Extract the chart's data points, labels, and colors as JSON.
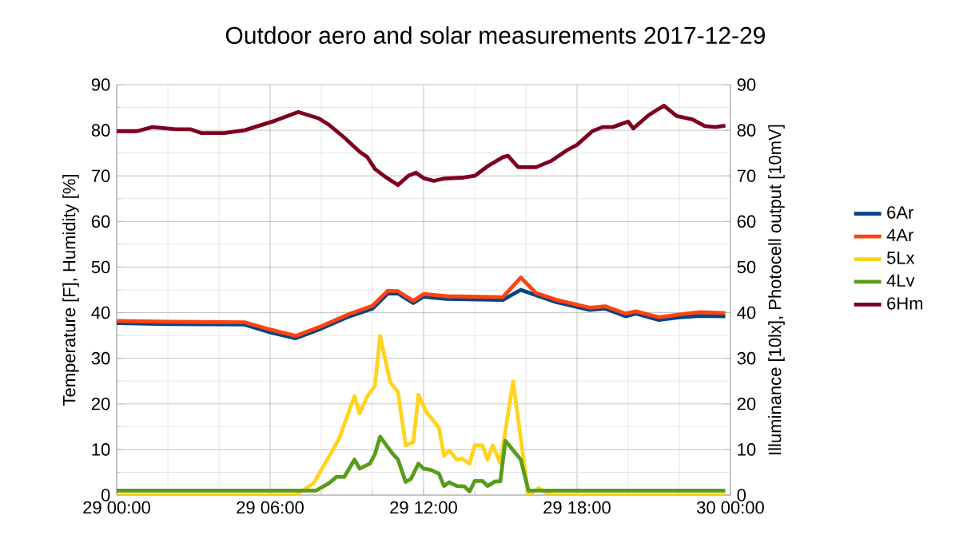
{
  "chart_data": {
    "type": "line",
    "title": "Outdoor aero and solar measurements 2017-12-29",
    "ylabel": "Temperature [F], Humidity [%]",
    "y2label": "Illuminance [10lx], Photocell output [10mV]",
    "xlim": [
      "2017-12-29T00:00",
      "2017-12-30T00:00"
    ],
    "xticks": [
      {
        "value": "2017-12-29T00:00",
        "label": "29 00:00"
      },
      {
        "value": "2017-12-29T06:00",
        "label": "29 06:00"
      },
      {
        "value": "2017-12-29T12:00",
        "label": "29 12:00"
      },
      {
        "value": "2017-12-29T18:00",
        "label": "29 18:00"
      },
      {
        "value": "2017-12-30T00:00",
        "label": "30 00:00"
      }
    ],
    "ylim": [
      0,
      90
    ],
    "yticks": [
      0,
      10,
      20,
      30,
      40,
      50,
      60,
      70,
      80,
      90
    ],
    "y2lim": [
      0,
      90
    ],
    "y2ticks": [
      0,
      10,
      20,
      30,
      40,
      50,
      60,
      70,
      80,
      90
    ],
    "grid": true,
    "legend": "right",
    "series": [
      {
        "name": "6Ar",
        "color": "#004586",
        "x": [
          "2017-12-29T00:00",
          "2017-12-29T02:00",
          "2017-12-29T05:00",
          "2017-12-29T06:00",
          "2017-12-29T07:00",
          "2017-12-29T07:54",
          "2017-12-29T09:06",
          "2017-12-29T10:00",
          "2017-12-29T10:36",
          "2017-12-29T11:00",
          "2017-12-29T11:36",
          "2017-12-29T12:00",
          "2017-12-29T12:54",
          "2017-12-29T15:06",
          "2017-12-29T15:48",
          "2017-12-29T16:24",
          "2017-12-29T17:12",
          "2017-12-29T18:30",
          "2017-12-29T19:06",
          "2017-12-29T19:54",
          "2017-12-29T20:18",
          "2017-12-29T21:12",
          "2017-12-29T22:00",
          "2017-12-29T22:48",
          "2017-12-29T23:48"
        ],
        "values": [
          37.7,
          37.5,
          37.4,
          35.7,
          34.4,
          36.3,
          39.2,
          40.9,
          44.2,
          44.2,
          42.1,
          43.5,
          43,
          42.8,
          45,
          43.8,
          42.3,
          40.6,
          40.9,
          39.2,
          39.8,
          38.4,
          39,
          39.3,
          39.2
        ]
      },
      {
        "name": "4Ar",
        "color": "#ff420e",
        "x": [
          "2017-12-29T00:00",
          "2017-12-29T02:00",
          "2017-12-29T05:00",
          "2017-12-29T06:00",
          "2017-12-29T07:00",
          "2017-12-29T07:54",
          "2017-12-29T09:06",
          "2017-12-29T10:00",
          "2017-12-29T10:36",
          "2017-12-29T11:00",
          "2017-12-29T11:36",
          "2017-12-29T12:00",
          "2017-12-29T12:54",
          "2017-12-29T15:06",
          "2017-12-29T15:48",
          "2017-12-29T16:24",
          "2017-12-29T17:12",
          "2017-12-29T18:30",
          "2017-12-29T19:06",
          "2017-12-29T19:54",
          "2017-12-29T20:18",
          "2017-12-29T21:12",
          "2017-12-29T22:00",
          "2017-12-29T22:48",
          "2017-12-29T23:48"
        ],
        "values": [
          38.2,
          38,
          37.9,
          36.3,
          34.9,
          36.8,
          39.7,
          41.5,
          44.8,
          44.7,
          42.6,
          44.1,
          43.6,
          43.4,
          47.7,
          44.3,
          42.8,
          41.1,
          41.4,
          39.8,
          40.3,
          39,
          39.6,
          40.1,
          39.9
        ]
      },
      {
        "name": "5Lx",
        "color": "#ffd320",
        "axis": "y2",
        "x": [
          "2017-12-29T00:00",
          "2017-12-29T07:00",
          "2017-12-29T07:42",
          "2017-12-29T08:18",
          "2017-12-29T08:42",
          "2017-12-29T09:18",
          "2017-12-29T09:30",
          "2017-12-29T09:48",
          "2017-12-29T10:06",
          "2017-12-29T10:18",
          "2017-12-29T10:42",
          "2017-12-29T11:00",
          "2017-12-29T11:18",
          "2017-12-29T11:36",
          "2017-12-29T11:48",
          "2017-12-29T12:06",
          "2017-12-29T12:36",
          "2017-12-29T12:48",
          "2017-12-29T13:00",
          "2017-12-29T13:18",
          "2017-12-29T13:30",
          "2017-12-29T13:48",
          "2017-12-29T14:00",
          "2017-12-29T14:18",
          "2017-12-29T14:30",
          "2017-12-29T14:42",
          "2017-12-29T15:00",
          "2017-12-29T15:30",
          "2017-12-29T16:06",
          "2017-12-29T16:30",
          "2017-12-29T17:00",
          "2017-12-29T23:48"
        ],
        "values": [
          0,
          0,
          2.6,
          8.4,
          12.4,
          21.7,
          17.9,
          21.7,
          24,
          34.9,
          24.7,
          22.6,
          10.9,
          11.6,
          22,
          18.3,
          14.8,
          8.6,
          9.8,
          7.8,
          8,
          6.9,
          10.9,
          10.9,
          7.8,
          10.9,
          7,
          24.9,
          0,
          1.5,
          0,
          0
        ]
      },
      {
        "name": "4Lv",
        "color": "#579d1c",
        "axis": "y2",
        "x": [
          "2017-12-29T00:00",
          "2017-12-29T07:48",
          "2017-12-29T08:18",
          "2017-12-29T08:36",
          "2017-12-29T08:54",
          "2017-12-29T09:18",
          "2017-12-29T09:30",
          "2017-12-29T09:54",
          "2017-12-29T10:06",
          "2017-12-29T10:18",
          "2017-12-29T10:48",
          "2017-12-29T11:00",
          "2017-12-29T11:18",
          "2017-12-29T11:30",
          "2017-12-29T11:48",
          "2017-12-29T12:00",
          "2017-12-29T12:18",
          "2017-12-29T12:36",
          "2017-12-29T12:48",
          "2017-12-29T13:00",
          "2017-12-29T13:18",
          "2017-12-29T13:36",
          "2017-12-29T13:48",
          "2017-12-29T14:00",
          "2017-12-29T14:18",
          "2017-12-29T14:30",
          "2017-12-29T14:48",
          "2017-12-29T15:00",
          "2017-12-29T15:12",
          "2017-12-29T15:48",
          "2017-12-29T16:06",
          "2017-12-29T23:48"
        ],
        "values": [
          1,
          1,
          2.6,
          4,
          4,
          7.8,
          5.8,
          6.9,
          9,
          12.8,
          9,
          7.8,
          2.9,
          3.5,
          6.9,
          5.8,
          5.5,
          4.7,
          2,
          2.8,
          2,
          1.9,
          0.8,
          3.1,
          3.1,
          2,
          3,
          3,
          11.9,
          7.8,
          1,
          1
        ]
      },
      {
        "name": "6Hm",
        "color": "#7e0021",
        "x": [
          "2017-12-29T00:00",
          "2017-12-29T00:48",
          "2017-12-29T01:24",
          "2017-12-29T02:18",
          "2017-12-29T02:54",
          "2017-12-29T03:18",
          "2017-12-29T04:12",
          "2017-12-29T05:00",
          "2017-12-29T05:24",
          "2017-12-29T06:12",
          "2017-12-29T07:06",
          "2017-12-29T07:54",
          "2017-12-29T08:18",
          "2017-12-29T08:54",
          "2017-12-29T09:30",
          "2017-12-29T09:48",
          "2017-12-29T10:06",
          "2017-12-29T10:30",
          "2017-12-29T11:00",
          "2017-12-29T11:24",
          "2017-12-29T11:42",
          "2017-12-29T12:00",
          "2017-12-29T12:24",
          "2017-12-29T12:48",
          "2017-12-29T13:30",
          "2017-12-29T14:00",
          "2017-12-29T14:30",
          "2017-12-29T15:06",
          "2017-12-29T15:18",
          "2017-12-29T15:42",
          "2017-12-29T16:24",
          "2017-12-29T17:00",
          "2017-12-29T17:36",
          "2017-12-29T18:00",
          "2017-12-29T18:36",
          "2017-12-29T19:00",
          "2017-12-29T19:24",
          "2017-12-29T20:00",
          "2017-12-29T20:12",
          "2017-12-29T20:48",
          "2017-12-29T21:24",
          "2017-12-29T21:54",
          "2017-12-29T22:30",
          "2017-12-29T23:00",
          "2017-12-29T23:24",
          "2017-12-29T23:48"
        ],
        "values": [
          79.8,
          79.8,
          80.7,
          80.2,
          80.2,
          79.4,
          79.4,
          80,
          80.7,
          82.1,
          84,
          82.6,
          81.2,
          78.4,
          75.3,
          74.1,
          71.5,
          69.8,
          68,
          70,
          70.7,
          69.5,
          68.9,
          69.4,
          69.6,
          70,
          72.1,
          74.1,
          74.4,
          71.9,
          71.9,
          73.3,
          75.6,
          76.8,
          79.8,
          80.7,
          80.7,
          81.9,
          80.4,
          83.3,
          85.4,
          83.1,
          82.4,
          80.9,
          80.7,
          81
        ]
      }
    ]
  }
}
